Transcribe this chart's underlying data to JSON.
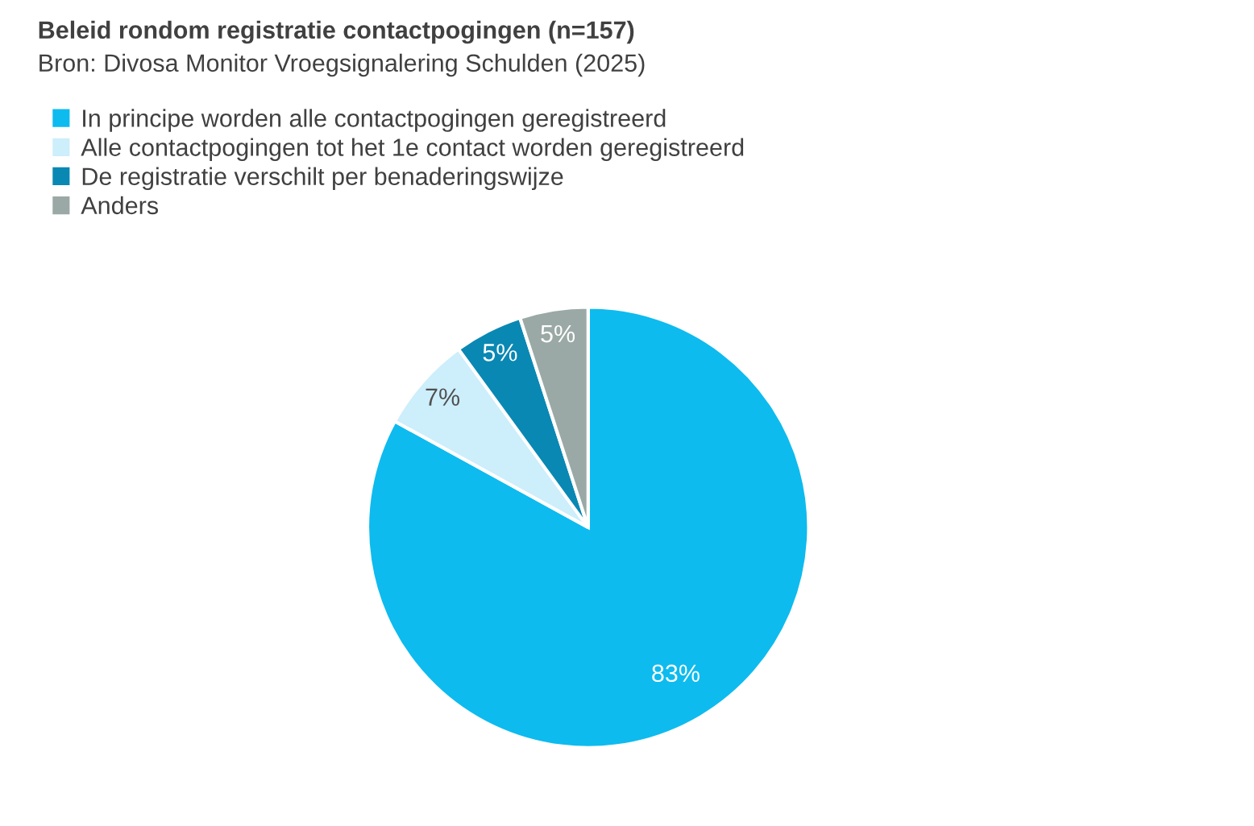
{
  "chart_data": {
    "type": "pie",
    "title": "Beleid rondom registratie contactpogingen (n=157)",
    "subtitle": "Bron: Divosa Monitor Vroegsignalering Schulden (2025)",
    "categories": [
      "In principe worden alle contactpogingen geregistreerd",
      "Alle contactpogingen tot het 1e contact worden geregistreerd",
      "De registratie verschilt per benaderingswijze",
      "Anders"
    ],
    "values": [
      83,
      7,
      5,
      5
    ],
    "colors": [
      "#0dbbef",
      "#cdeefb",
      "#0a88b4",
      "#9aa9a5"
    ],
    "value_labels": [
      "83%",
      "7%",
      "5%",
      "5%"
    ],
    "legend": "top left"
  }
}
